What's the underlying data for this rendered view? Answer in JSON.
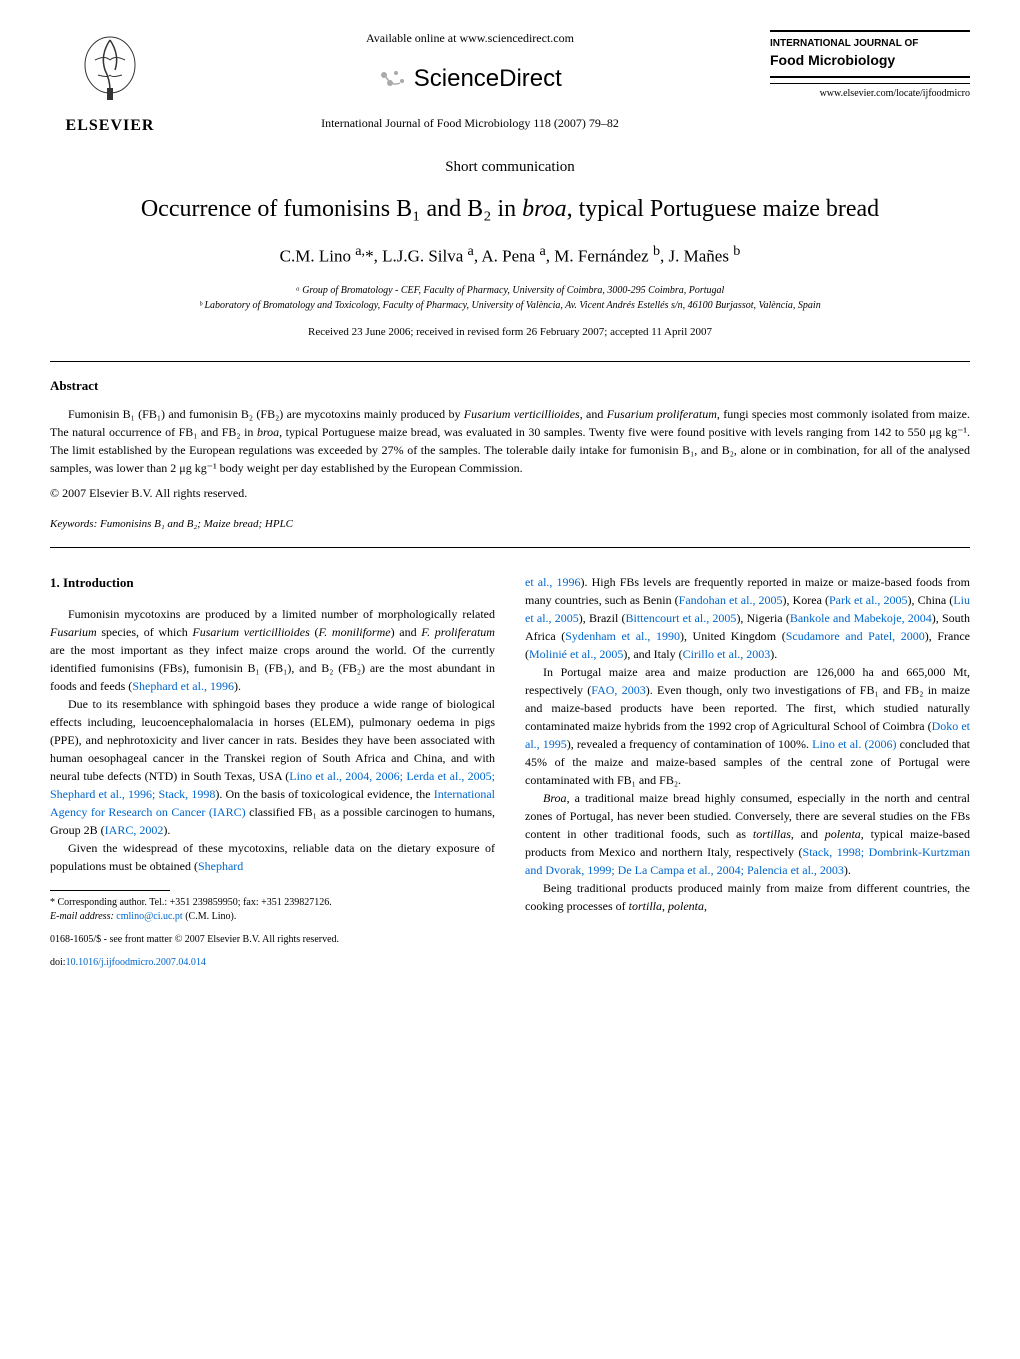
{
  "header": {
    "publisher_name": "ELSEVIER",
    "available_text": "Available online at www.sciencedirect.com",
    "platform_name": "ScienceDirect",
    "journal_reference": "International Journal of Food Microbiology 118 (2007) 79–82",
    "journal_title_line1": "INTERNATIONAL JOURNAL OF",
    "journal_title_line2": "Food Microbiology",
    "journal_url": "www.elsevier.com/locate/ijfoodmicro"
  },
  "article": {
    "type": "Short communication",
    "title_html": "Occurrence of fumonisins B₁ and B₂ in <i>broa</i>, typical Portuguese maize bread",
    "authors_html": "C.M. Lino <sup>a,</sup>*, L.J.G. Silva <sup>a</sup>, A. Pena <sup>a</sup>, M. Fernández <sup>b</sup>, J. Mañes <sup>b</sup>",
    "affiliation_a": "ᵃ Group of Bromatology - CEF, Faculty of Pharmacy, University of Coimbra, 3000-295 Coimbra, Portugal",
    "affiliation_b": "ᵇ Laboratory of Bromatology and Toxicology, Faculty of Pharmacy, University of València, Av. Vicent Andrés Estellés s/n, 46100 Burjassot, València, Spain",
    "dates": "Received 23 June 2006; received in revised form 26 February 2007; accepted 11 April 2007"
  },
  "abstract": {
    "heading": "Abstract",
    "text_html": "Fumonisin B₁ (FB₁) and fumonisin B₂ (FB₂) are mycotoxins mainly produced by <i>Fusarium verticillioides</i>, and <i>Fusarium proliferatum</i>, fungi species most commonly isolated from maize. The natural occurrence of FB₁ and FB₂ in <i>broa</i>, typical Portuguese maize bread, was evaluated in 30 samples. Twenty five were found positive with levels ranging from 142 to 550 μg kg⁻¹. The limit established by the European regulations was exceeded by 27% of the samples. The tolerable daily intake for fumonisin B₁, and B₂, alone or in combination, for all of the analysed samples, was lower than 2 μg kg⁻¹ body weight per day established by the European Commission.",
    "copyright": "© 2007 Elsevier B.V. All rights reserved.",
    "keywords_label": "Keywords:",
    "keywords_text": "Fumonisins B₁ and B₂; Maize bread; HPLC"
  },
  "body": {
    "section_heading": "1. Introduction",
    "left_paragraphs": [
      "Fumonisin mycotoxins are produced by a limited number of morphologically related <i>Fusarium</i> species, of which <i>Fusarium verticillioides</i> (<i>F. moniliforme</i>) and <i>F. proliferatum</i> are the most important as they infect maize crops around the world. Of the currently identified fumonisins (FBs), fumonisin B₁ (FB₁), and B₂ (FB₂) are the most abundant in foods and feeds (<span class=\"citation\">Shephard et al., 1996</span>).",
      "Due to its resemblance with sphingoid bases they produce a wide range of biological effects including, leucoencephalomalacia in horses (ELEM), pulmonary oedema in pigs (PPE), and nephrotoxicity and liver cancer in rats. Besides they have been associated with human oesophageal cancer in the Transkei region of South Africa and China, and with neural tube defects (NTD) in South Texas, USA (<span class=\"citation\">Lino et al., 2004, 2006; Lerda et al., 2005; Shephard et al., 1996; Stack, 1998</span>). On the basis of toxicological evidence, the <span class=\"citation\">International Agency for Research on Cancer (IARC)</span> classified FB₁ as a possible carcinogen to humans, Group 2B (<span class=\"citation\">IARC, 2002</span>).",
      "Given the widespread of these mycotoxins, reliable data on the dietary exposure of populations must be obtained (<span class=\"citation\">Shephard</span>"
    ],
    "right_paragraphs": [
      "<span class=\"citation\">et al., 1996</span>). High FBs levels are frequently reported in maize or maize-based foods from many countries, such as Benin (<span class=\"citation\">Fandohan et al., 2005</span>), Korea (<span class=\"citation\">Park et al., 2005</span>), China (<span class=\"citation\">Liu et al., 2005</span>), Brazil (<span class=\"citation\">Bittencourt et al., 2005</span>), Nigeria (<span class=\"citation\">Bankole and Mabekoje, 2004</span>), South Africa (<span class=\"citation\">Sydenham et al., 1990</span>), United Kingdom (<span class=\"citation\">Scudamore and Patel, 2000</span>), France (<span class=\"citation\">Molinié et al., 2005</span>), and Italy (<span class=\"citation\">Cirillo et al., 2003</span>).",
      "In Portugal maize area and maize production are 126,000 ha and 665,000 Mt, respectively (<span class=\"citation\">FAO, 2003</span>). Even though, only two investigations of FB₁ and FB₂ in maize and maize-based products have been reported. The first, which studied naturally contaminated maize hybrids from the 1992 crop of Agricultural School of Coimbra (<span class=\"citation\">Doko et al., 1995</span>), revealed a frequency of contamination of 100%. <span class=\"citation\">Lino et al. (2006)</span> concluded that 45% of the maize and maize-based samples of the central zone of Portugal were contaminated with FB₁ and FB₂.",
      "<i>Broa</i>, a traditional maize bread highly consumed, especially in the north and central zones of Portugal, has never been studied. Conversely, there are several studies on the FBs content in other traditional foods, such as <i>tortillas</i>, and <i>polenta</i>, typical maize-based products from Mexico and northern Italy, respectively (<span class=\"citation\">Stack, 1998; Dombrink-Kurtzman and Dvorak, 1999; De La Campa et al., 2004; Palencia et al., 2003</span>).",
      "Being traditional products produced mainly from maize from different countries, the cooking processes of <i>tortilla</i>, <i>polenta</i>,"
    ]
  },
  "footnotes": {
    "corresponding": "* Corresponding author. Tel.: +351 239859950; fax: +351 239827126.",
    "email_label": "E-mail address:",
    "email": "cmlino@ci.uc.pt",
    "email_author": "(C.M. Lino).",
    "copyright_line": "0168-1605/$ - see front matter © 2007 Elsevier B.V. All rights reserved.",
    "doi_label": "doi:",
    "doi": "10.1016/j.ijfoodmicro.2007.04.014"
  },
  "colors": {
    "citation": "#0066cc",
    "text": "#000000",
    "background": "#ffffff"
  }
}
